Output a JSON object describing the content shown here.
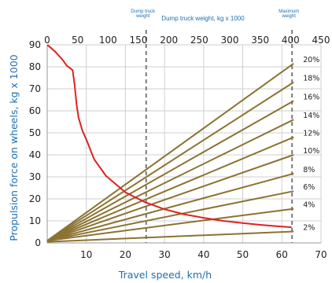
{
  "chart_data": {
    "type": "line",
    "xlabel": "Travel speed, km/h",
    "ylabel": "Propulsion force on wheels, kg x 1000",
    "top_axis_label": "Dump truck weight, kg x 1000",
    "xlim": [
      0,
      70
    ],
    "ylim": [
      0,
      90
    ],
    "x_ticks": [
      "10",
      "20",
      "30",
      "40",
      "50",
      "60",
      "70"
    ],
    "y_ticks": [
      "0",
      "10",
      "20",
      "30",
      "40",
      "50",
      "60",
      "70",
      "80",
      "90"
    ],
    "top_lim": [
      0,
      450
    ],
    "top_ticks": [
      "0",
      "50",
      "100",
      "150",
      "200",
      "250",
      "300",
      "350",
      "400",
      "450"
    ],
    "grid": true,
    "reference_lines": [
      {
        "label": "Dump truck weight",
        "x": 25.3
      },
      {
        "label": "Maximum weight",
        "x": 62.6
      }
    ],
    "propulsion_curve": {
      "color": "#e02020",
      "points": [
        [
          0,
          90
        ],
        [
          1,
          88.5
        ],
        [
          2,
          87
        ],
        [
          3,
          85
        ],
        [
          4,
          83
        ],
        [
          5,
          80.5
        ],
        [
          6.5,
          78.5
        ],
        [
          7,
          72
        ],
        [
          7.5,
          63
        ],
        [
          8,
          57
        ],
        [
          9,
          51
        ],
        [
          10,
          47
        ],
        [
          12,
          38
        ],
        [
          15,
          30.5
        ],
        [
          20,
          23
        ],
        [
          25,
          18.5
        ],
        [
          30,
          15.3
        ],
        [
          35,
          13
        ],
        [
          40,
          11.4
        ],
        [
          45,
          10
        ],
        [
          50,
          9
        ],
        [
          55,
          8.1
        ],
        [
          60,
          7.4
        ],
        [
          62.5,
          7.1
        ]
      ]
    },
    "grade_lines": {
      "color": "#8b7332",
      "series": [
        {
          "name": "2%",
          "x": [
            0,
            63
          ],
          "y": [
            0.5,
            5.2
          ]
        },
        {
          "name": "4%",
          "x": [
            0,
            63
          ],
          "y": [
            1.0,
            15.5
          ]
        },
        {
          "name": "6%",
          "x": [
            0,
            63
          ],
          "y": [
            1.0,
            23.5
          ]
        },
        {
          "name": "8%",
          "x": [
            0,
            63
          ],
          "y": [
            1.0,
            31.5
          ]
        },
        {
          "name": "10%",
          "x": [
            0,
            63
          ],
          "y": [
            1.0,
            40
          ]
        },
        {
          "name": "12%",
          "x": [
            0,
            63
          ],
          "y": [
            1.0,
            48
          ]
        },
        {
          "name": "14%",
          "x": [
            0,
            63
          ],
          "y": [
            1.0,
            56
          ]
        },
        {
          "name": "16%",
          "x": [
            0,
            63
          ],
          "y": [
            1.0,
            64.5
          ]
        },
        {
          "name": "18%",
          "x": [
            0,
            63
          ],
          "y": [
            1.0,
            73
          ]
        },
        {
          "name": "20%",
          "x": [
            0,
            63
          ],
          "y": [
            1.0,
            81.5
          ]
        }
      ]
    }
  }
}
